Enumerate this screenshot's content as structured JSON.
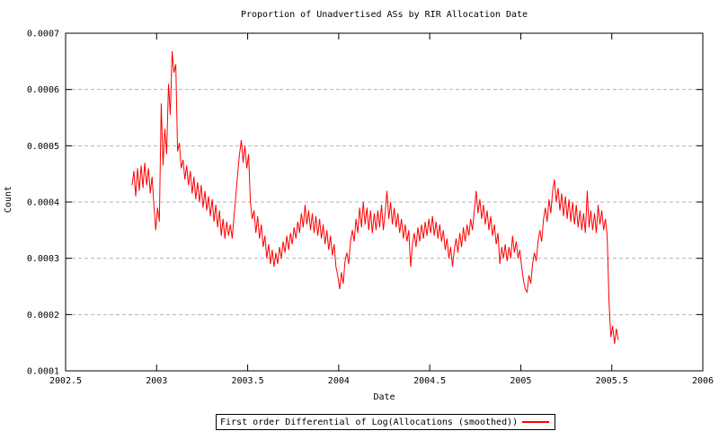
{
  "colors": {
    "line": "#ff0000",
    "grid": "#b3b3b3",
    "axis": "#000000",
    "background": "#ffffff",
    "text": "#000000"
  },
  "chart_data": {
    "type": "line",
    "title": "Proportion of Unadvertised ASs by RIR Allocation Date",
    "xlabel": "Date",
    "ylabel": "Count",
    "xlim": [
      2002.5,
      2006
    ],
    "ylim": [
      0.0001,
      0.0007
    ],
    "xticks": {
      "values": [
        2002.5,
        2003,
        2003.5,
        2004,
        2004.5,
        2005,
        2005.5,
        2006
      ],
      "labels": [
        "2002.5",
        "2003",
        "2003.5",
        "2004",
        "2004.5",
        "2005",
        "2005.5",
        "2006"
      ]
    },
    "yticks": {
      "values": [
        0.0001,
        0.0002,
        0.0003,
        0.0004,
        0.0005,
        0.0006,
        0.0007
      ],
      "labels": [
        "0.0001",
        "0.0002",
        "0.0003",
        "0.0004",
        "0.0005",
        "0.0006",
        "0.0007"
      ]
    },
    "grid": {
      "horizontal": true,
      "vertical": false,
      "style": "dashed"
    },
    "legend": {
      "position": "below-chart-center",
      "entries": [
        {
          "label": "First order Differential of Log(Allocations (smoothed))",
          "color": "#ff0000"
        }
      ]
    },
    "series": [
      {
        "name": "First order Differential of Log(Allocations (smoothed))",
        "color": "#ff0000",
        "x_start": 2002.865,
        "x_step": 0.01,
        "y_scale": 0.0001,
        "values_e4": [
          4.3,
          4.55,
          4.1,
          4.6,
          4.2,
          4.65,
          4.25,
          4.7,
          4.3,
          4.6,
          4.15,
          4.45,
          3.95,
          3.5,
          3.9,
          3.65,
          5.75,
          4.65,
          5.3,
          4.85,
          6.1,
          5.55,
          6.68,
          6.3,
          6.45,
          4.9,
          5.05,
          4.6,
          4.75,
          4.4,
          4.65,
          4.3,
          4.55,
          4.15,
          4.45,
          4.05,
          4.35,
          4.0,
          4.3,
          3.9,
          4.2,
          3.85,
          4.1,
          3.75,
          4.05,
          3.65,
          3.95,
          3.55,
          3.85,
          3.4,
          3.7,
          3.35,
          3.65,
          3.4,
          3.6,
          3.35,
          3.75,
          4.1,
          4.5,
          4.85,
          5.1,
          4.7,
          5.0,
          4.6,
          4.85,
          4.0,
          3.7,
          3.85,
          3.45,
          3.75,
          3.35,
          3.6,
          3.2,
          3.4,
          3.0,
          3.25,
          2.9,
          3.15,
          2.85,
          3.1,
          2.9,
          3.2,
          3.0,
          3.3,
          3.1,
          3.4,
          3.15,
          3.45,
          3.25,
          3.55,
          3.35,
          3.65,
          3.45,
          3.8,
          3.55,
          3.95,
          3.6,
          3.85,
          3.5,
          3.8,
          3.45,
          3.75,
          3.4,
          3.7,
          3.35,
          3.6,
          3.25,
          3.5,
          3.15,
          3.4,
          3.05,
          3.25,
          2.85,
          2.7,
          2.45,
          2.75,
          2.55,
          2.95,
          3.1,
          2.9,
          3.3,
          3.5,
          3.3,
          3.7,
          3.45,
          3.9,
          3.55,
          4.0,
          3.6,
          3.9,
          3.5,
          3.85,
          3.45,
          3.8,
          3.5,
          3.85,
          3.55,
          3.95,
          3.5,
          3.8,
          4.2,
          3.7,
          4.0,
          3.6,
          3.9,
          3.55,
          3.8,
          3.45,
          3.7,
          3.35,
          3.6,
          3.3,
          3.5,
          2.85,
          3.25,
          3.45,
          3.2,
          3.55,
          3.3,
          3.6,
          3.35,
          3.65,
          3.4,
          3.7,
          3.45,
          3.75,
          3.4,
          3.65,
          3.35,
          3.6,
          3.3,
          3.5,
          3.15,
          3.35,
          3.0,
          3.2,
          2.85,
          3.15,
          3.35,
          3.1,
          3.45,
          3.2,
          3.55,
          3.3,
          3.6,
          3.4,
          3.7,
          3.5,
          3.85,
          4.2,
          3.8,
          4.05,
          3.7,
          3.95,
          3.6,
          3.85,
          3.5,
          3.75,
          3.4,
          3.6,
          3.25,
          3.45,
          2.9,
          3.2,
          3.0,
          3.25,
          2.95,
          3.2,
          3.0,
          3.4,
          3.1,
          3.3,
          3.0,
          3.15,
          2.85,
          2.6,
          2.45,
          2.4,
          2.7,
          2.55,
          2.9,
          3.1,
          2.95,
          3.3,
          3.5,
          3.3,
          3.7,
          3.9,
          3.65,
          4.05,
          3.8,
          4.2,
          4.4,
          4.0,
          4.25,
          3.85,
          4.15,
          3.75,
          4.1,
          3.7,
          4.05,
          3.65,
          4.0,
          3.6,
          3.95,
          3.55,
          3.85,
          3.5,
          3.8,
          3.45,
          4.2,
          3.55,
          3.85,
          3.5,
          3.8,
          3.45,
          3.95,
          3.6,
          3.85,
          3.5,
          3.7,
          3.4,
          2.2,
          1.6,
          1.8,
          1.48,
          1.75,
          1.55
        ]
      }
    ]
  }
}
